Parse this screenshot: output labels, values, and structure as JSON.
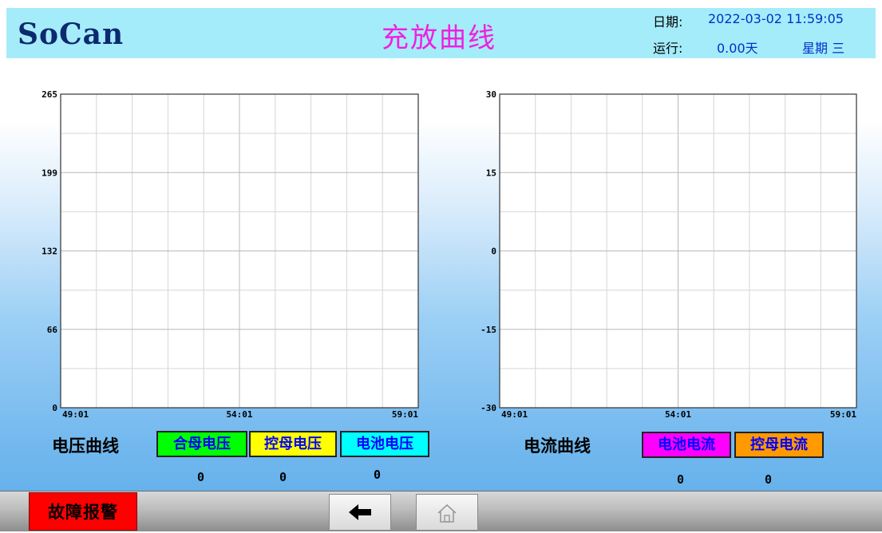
{
  "header": {
    "logo": "SoCan",
    "title": "充放曲线",
    "date_label": "日期:",
    "date_value": "2022-03-02 11:59:05",
    "run_label": "运行:",
    "run_value": "0.00天",
    "weekday": "星期 三"
  },
  "voltage": {
    "group_label": "电压曲线",
    "legend": [
      {
        "label": "合母电压",
        "bg": "#00ff00",
        "fg": "#0000ff",
        "value": "0"
      },
      {
        "label": "控母电压",
        "bg": "#ffff00",
        "fg": "#0000ff",
        "value": "0"
      },
      {
        "label": "电池电压",
        "bg": "#00ffff",
        "fg": "#0000ff",
        "value": "0"
      }
    ]
  },
  "current": {
    "group_label": "电流曲线",
    "legend": [
      {
        "label": "电池电流",
        "bg": "#ff00ff",
        "fg": "#0000ff",
        "value": "0"
      },
      {
        "label": "控母电流",
        "bg": "#ff9900",
        "fg": "#0000ff",
        "value": "0"
      }
    ]
  },
  "chart_data": [
    {
      "type": "line",
      "y_ticks": [
        "265",
        "199",
        "132",
        "66",
        "0"
      ],
      "x_ticks": [
        "49:01",
        "54:01",
        "59:01"
      ],
      "ylim": [
        0,
        265
      ],
      "grid": true,
      "series": []
    },
    {
      "type": "line",
      "y_ticks": [
        "30",
        "15",
        "0",
        "-15",
        "-30"
      ],
      "x_ticks": [
        "49:01",
        "54:01",
        "59:01"
      ],
      "ylim": [
        -30,
        30
      ],
      "grid": true,
      "series": []
    }
  ],
  "footer": {
    "fault_button": "故障报警",
    "back_icon": "arrow-left-icon",
    "home_icon": "home-icon"
  }
}
